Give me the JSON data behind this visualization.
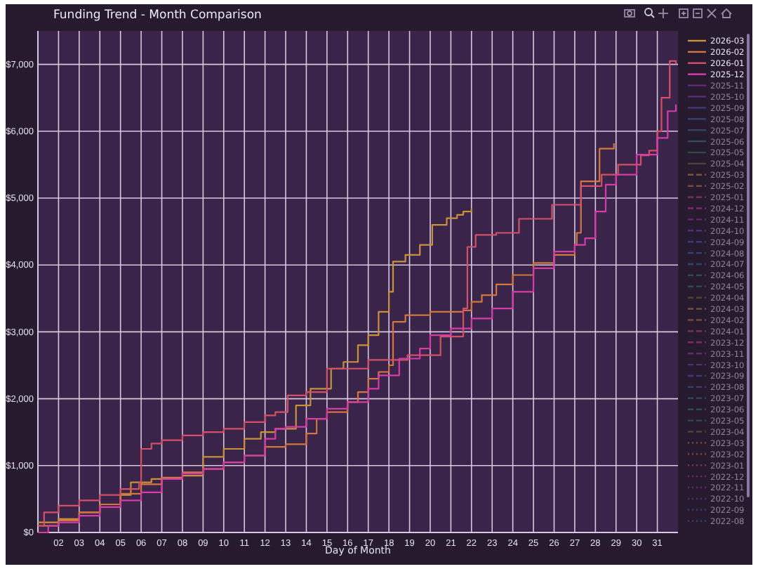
{
  "chart_data": {
    "type": "step",
    "title": "Funding Trend - Month Comparison",
    "xlabel": "Day of Month",
    "xlim": [
      1,
      32
    ],
    "ylim": [
      0,
      7500
    ],
    "xticks": [
      {
        "value": 2,
        "label": "02"
      },
      {
        "value": 3,
        "label": "03"
      },
      {
        "value": 4,
        "label": "04"
      },
      {
        "value": 5,
        "label": "05"
      },
      {
        "value": 6,
        "label": "06"
      },
      {
        "value": 7,
        "label": "07"
      },
      {
        "value": 8,
        "label": "08"
      },
      {
        "value": 9,
        "label": "09"
      },
      10,
      11,
      12,
      13,
      14,
      15,
      16,
      17,
      18,
      19,
      20,
      21,
      22,
      23,
      24,
      25,
      26,
      27,
      28,
      29,
      30,
      31
    ],
    "yticks": [
      {
        "value": 0,
        "label": "$0"
      },
      {
        "value": 1000,
        "label": "$1,000"
      },
      {
        "value": 2000,
        "label": "$2,000"
      },
      {
        "value": 3000,
        "label": "$3,000"
      },
      {
        "value": 4000,
        "label": "$4,000"
      },
      {
        "value": 5000,
        "label": "$5,000"
      },
      {
        "value": 6000,
        "label": "$6,000"
      },
      {
        "value": 7000,
        "label": "$7,000"
      }
    ],
    "grid": true,
    "legend": "right",
    "marker": "none",
    "series": [
      {
        "name": "2026-03",
        "color": "#c8913a",
        "line_style": "solid",
        "x": [
          1,
          2,
          3,
          4,
          5,
          5.5,
          6.5,
          8,
          9,
          10,
          11,
          11.8,
          12.5,
          13.5,
          14.2,
          15.2,
          15.8,
          16.5,
          17,
          17.5,
          18,
          18.2,
          18.8,
          19.5,
          20.1,
          20.8,
          21.3,
          21.6,
          22
        ],
        "values": [
          150,
          200,
          300,
          420,
          560,
          750,
          800,
          850,
          1130,
          1250,
          1400,
          1500,
          1550,
          1900,
          2150,
          2450,
          2550,
          2800,
          2950,
          3300,
          3600,
          4050,
          4150,
          4300,
          4600,
          4700,
          4750,
          4800,
          4850
        ]
      },
      {
        "name": "2026-02",
        "color": "#d2763e",
        "line_style": "solid",
        "x": [
          1,
          2,
          3,
          4,
          5,
          6,
          7,
          8,
          9,
          10,
          11,
          12,
          13,
          14,
          14.5,
          15,
          16,
          16.5,
          17,
          17.5,
          18,
          18.2,
          18.8,
          20,
          21.6,
          22,
          22.5,
          23.2,
          24,
          25,
          26,
          27,
          27.1,
          27.3,
          28.2,
          28.9
        ],
        "values": [
          100,
          180,
          300,
          420,
          580,
          720,
          820,
          900,
          950,
          1050,
          1150,
          1280,
          1320,
          1480,
          1700,
          1800,
          1950,
          2100,
          2300,
          2400,
          2500,
          3150,
          3250,
          3300,
          3320,
          3450,
          3550,
          3710,
          3850,
          4030,
          4150,
          4300,
          4480,
          5250,
          5740,
          5820
        ]
      },
      {
        "name": "2026-01",
        "color": "#d4506a",
        "line_style": "solid",
        "x": [
          1,
          1.3,
          2,
          3,
          4,
          5,
          5.9,
          6,
          6.5,
          7,
          8,
          9,
          10,
          11,
          12,
          12.5,
          13.1,
          14,
          15,
          17,
          18.9,
          20.5,
          21.6,
          21.8,
          22.2,
          23.2,
          24.3,
          25.9,
          27.3,
          28.3,
          29.1,
          30.2,
          30.6,
          31,
          31.2,
          31.6,
          31.9
        ],
        "values": [
          100,
          300,
          400,
          480,
          560,
          650,
          750,
          1250,
          1330,
          1380,
          1450,
          1500,
          1550,
          1650,
          1750,
          1800,
          2050,
          2100,
          2450,
          2580,
          2650,
          2930,
          3350,
          4270,
          4450,
          4480,
          4690,
          4900,
          5180,
          5350,
          5500,
          5640,
          5710,
          6000,
          6500,
          7050,
          7000
        ]
      },
      {
        "name": "2025-12",
        "color": "#d63ca8",
        "line_style": "solid",
        "x": [
          1,
          1.5,
          2,
          3,
          4,
          5,
          6,
          7,
          8,
          9,
          10,
          11,
          12,
          12.5,
          13,
          14,
          15,
          16,
          17,
          17.5,
          18.5,
          19.5,
          20,
          21,
          22,
          23,
          24,
          25,
          26,
          27,
          27.5,
          28,
          28.5,
          29,
          30,
          31,
          31.5,
          31.9
        ],
        "values": [
          0,
          100,
          150,
          250,
          380,
          480,
          600,
          800,
          880,
          950,
          1050,
          1150,
          1400,
          1550,
          1580,
          1700,
          1850,
          1950,
          2150,
          2350,
          2600,
          2750,
          2950,
          3050,
          3200,
          3350,
          3600,
          3950,
          4200,
          4300,
          4400,
          4800,
          5200,
          5350,
          5650,
          5900,
          6300,
          6400
        ]
      },
      {
        "name": "2025-11",
        "color": "#a03ab0",
        "line_style": "solid"
      },
      {
        "name": "2025-10",
        "color": "#7d45b8",
        "line_style": "solid"
      },
      {
        "name": "2025-09",
        "color": "#5a55b8",
        "line_style": "solid"
      },
      {
        "name": "2025-08",
        "color": "#4a66a8",
        "line_style": "solid"
      },
      {
        "name": "2025-07",
        "color": "#3a7090",
        "line_style": "solid"
      },
      {
        "name": "2025-06",
        "color": "#3a8080",
        "line_style": "solid"
      },
      {
        "name": "2025-05",
        "color": "#3f7a5a",
        "line_style": "solid"
      },
      {
        "name": "2025-04",
        "color": "#7a6a3a",
        "line_style": "solid"
      },
      {
        "name": "2025-03",
        "color": "#c8913a",
        "line_style": "dashed"
      },
      {
        "name": "2025-02",
        "color": "#d2763e",
        "line_style": "dashed"
      },
      {
        "name": "2025-01",
        "color": "#d4506a",
        "line_style": "dashed"
      },
      {
        "name": "2024-12",
        "color": "#d63ca8",
        "line_style": "dashed"
      },
      {
        "name": "2024-11",
        "color": "#a03ab0",
        "line_style": "dashed"
      },
      {
        "name": "2024-10",
        "color": "#7d45b8",
        "line_style": "dashed"
      },
      {
        "name": "2024-09",
        "color": "#5a55b8",
        "line_style": "dashed"
      },
      {
        "name": "2024-08",
        "color": "#4a66a8",
        "line_style": "dashed"
      },
      {
        "name": "2024-07",
        "color": "#3a7090",
        "line_style": "dashed"
      },
      {
        "name": "2024-06",
        "color": "#3a8080",
        "line_style": "dashed"
      },
      {
        "name": "2024-05",
        "color": "#3f7a5a",
        "line_style": "dashed"
      },
      {
        "name": "2024-04",
        "color": "#7a6a3a",
        "line_style": "dashed"
      },
      {
        "name": "2024-03",
        "color": "#c8913a",
        "line_style": "dashed"
      },
      {
        "name": "2024-02",
        "color": "#d2763e",
        "line_style": "dashed"
      },
      {
        "name": "2024-01",
        "color": "#d4506a",
        "line_style": "dashed"
      },
      {
        "name": "2023-12",
        "color": "#d63ca8",
        "line_style": "dashed"
      },
      {
        "name": "2023-11",
        "color": "#a03ab0",
        "line_style": "dashed"
      },
      {
        "name": "2023-10",
        "color": "#7d45b8",
        "line_style": "dashed"
      },
      {
        "name": "2023-09",
        "color": "#5a55b8",
        "line_style": "dashed"
      },
      {
        "name": "2023-08",
        "color": "#4a66a8",
        "line_style": "dashed"
      },
      {
        "name": "2023-07",
        "color": "#3a7090",
        "line_style": "dashed"
      },
      {
        "name": "2023-06",
        "color": "#3a8080",
        "line_style": "dashed"
      },
      {
        "name": "2023-05",
        "color": "#3f7a5a",
        "line_style": "dashed"
      },
      {
        "name": "2023-04",
        "color": "#7a6a3a",
        "line_style": "dashed"
      },
      {
        "name": "2023-03",
        "color": "#c8913a",
        "line_style": "dotted"
      },
      {
        "name": "2023-02",
        "color": "#d2763e",
        "line_style": "dotted"
      },
      {
        "name": "2023-01",
        "color": "#d4506a",
        "line_style": "dotted"
      },
      {
        "name": "2022-12",
        "color": "#d63ca8",
        "line_style": "dotted"
      },
      {
        "name": "2022-11",
        "color": "#a03ab0",
        "line_style": "dotted"
      },
      {
        "name": "2022-10",
        "color": "#7d45b8",
        "line_style": "dotted"
      },
      {
        "name": "2022-09",
        "color": "#5a55b8",
        "line_style": "dotted"
      },
      {
        "name": "2022-08",
        "color": "#4a66a8",
        "line_style": "dotted"
      }
    ]
  }
}
